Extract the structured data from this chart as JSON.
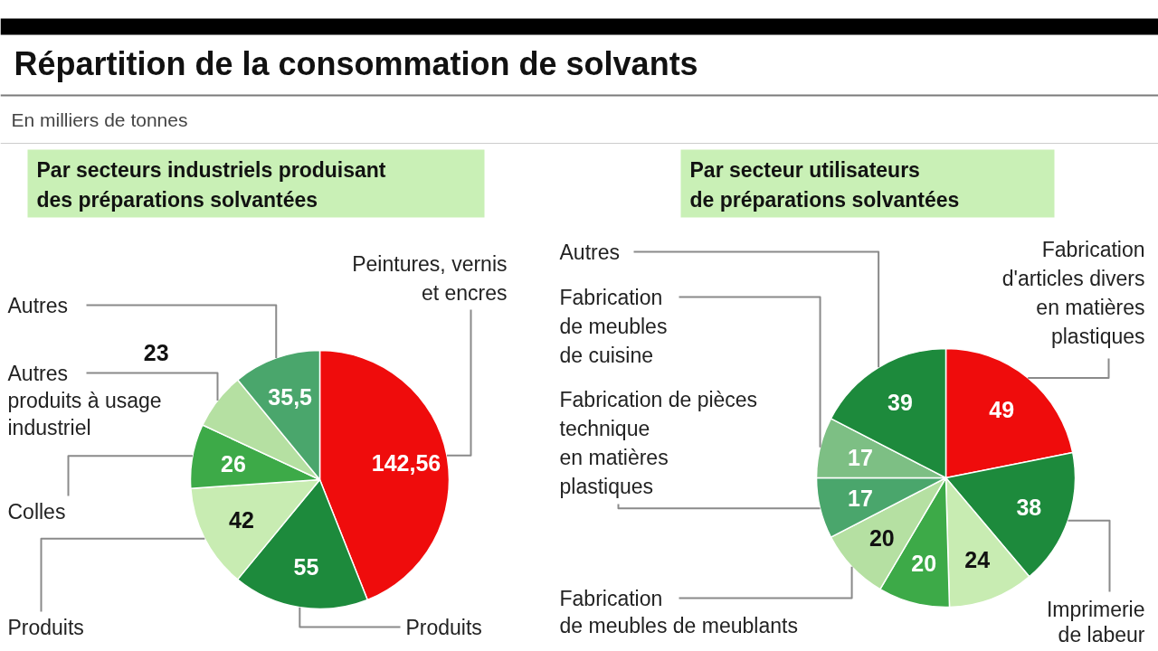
{
  "chart_data": [
    {
      "type": "pie",
      "title": "Répartition de la consommation de solvants",
      "subtitle": "Par secteurs industriels produisant des préparations solvantées",
      "annotations": [
        "En milliers de tonnes"
      ],
      "categories": [
        "Peintures, vernis et encres",
        "Produits",
        "Produits",
        "Colles",
        "Autres produits à usage industriel",
        "Autres"
      ],
      "values": [
        142.56,
        55,
        42,
        26,
        23,
        35.5
      ],
      "colors": [
        "#ef0c0c",
        "#1d8a3c",
        "#c8ecb2",
        "#3daa48",
        "#b5e0a2",
        "#4aa66c"
      ],
      "value_labels": [
        "142,56",
        "55",
        "42",
        "26",
        "23",
        "35,5"
      ]
    },
    {
      "type": "pie",
      "subtitle": "Par secteur utilisateurs de préparations solvantées",
      "categories": [
        "Fabrication d'articles divers en matières plastiques",
        "Imprimerie de labeur",
        null,
        null,
        "Fabrication de meubles de meublants",
        "Fabrication de pièces technique en matières plastiques",
        "Fabrication de meubles de cuisine",
        "Autres"
      ],
      "values": [
        49,
        38,
        24,
        20,
        20,
        17,
        17,
        39
      ],
      "colors": [
        "#ef0c0c",
        "#1d8a3c",
        "#c8ecb2",
        "#3daa48",
        "#b5e0a2",
        "#4aa66c",
        "#7dbf84",
        "#1d8a3c"
      ],
      "data_labels": true
    }
  ]
}
